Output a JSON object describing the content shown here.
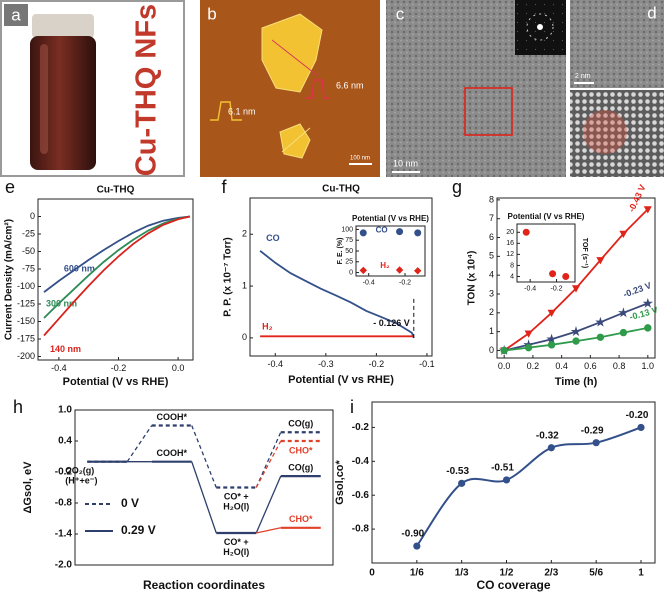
{
  "figure": {
    "a": {
      "panel": "a",
      "caption": "Cu-THQ NFs"
    },
    "b": {
      "panel": "b",
      "annotations": [
        "6.6 nm",
        "6.1 nm"
      ],
      "scale_bar": "100 nm"
    },
    "c": {
      "panel": "c",
      "scale_bar": "10 nm"
    },
    "d": {
      "panel": "d",
      "scale_bar": "2 nm"
    }
  },
  "chart_data": [
    {
      "panel": "e",
      "type": "line",
      "title": "Cu-THQ",
      "xlabel": "Potential (V vs RHE)",
      "ylabel": "Current Density (mA/cm²)",
      "x": [
        -0.45,
        -0.4,
        -0.35,
        -0.3,
        -0.25,
        -0.2,
        -0.15,
        -0.1,
        -0.05,
        0,
        0.04
      ],
      "xlim": [
        -0.47,
        0.05
      ],
      "xticks": [
        -0.4,
        -0.2,
        {
          "value": 0,
          "label": "0.0"
        }
      ],
      "ylim": [
        -205,
        25
      ],
      "yticks": [
        0,
        -25,
        -50,
        -75,
        -100,
        -125,
        -150,
        -175,
        -200
      ],
      "series": [
        {
          "name": "600 nm",
          "color": "#33508a",
          "values": [
            -108,
            -92,
            -77,
            -62,
            -48,
            -35,
            -23,
            -13,
            -6,
            -2,
            0
          ]
        },
        {
          "name": "300 nm",
          "color": "#2e8b57",
          "values": [
            -145,
            -124,
            -104,
            -84,
            -65,
            -48,
            -33,
            -20,
            -10,
            -3,
            0
          ]
        },
        {
          "name": "140 nm",
          "color": "#d9221c",
          "values": [
            -170,
            -146,
            -122,
            -99,
            -77,
            -57,
            -39,
            -24,
            -12,
            -4,
            0
          ]
        }
      ]
    },
    {
      "panel": "f",
      "type": "line",
      "title": "Cu-THQ",
      "xlabel": "Potential (V vs RHE)",
      "ylabel": "P. P. (x 10⁻⁷ Torr)",
      "x": [
        -0.43,
        -0.4,
        -0.37,
        -0.34,
        -0.31,
        -0.28,
        -0.25,
        -0.22,
        -0.19,
        -0.16,
        -0.13,
        -0.126
      ],
      "xlim": [
        -0.45,
        -0.09
      ],
      "xticks": [
        -0.4,
        -0.3,
        -0.2,
        -0.1
      ],
      "ylim": [
        -0.35,
        2.7
      ],
      "yticks": [
        0,
        1,
        2
      ],
      "series": [
        {
          "name": "CO",
          "color": "#33508a",
          "values": [
            1.68,
            1.45,
            1.25,
            1.1,
            0.95,
            0.82,
            0.68,
            0.52,
            0.4,
            0.28,
            0.1,
            0
          ]
        },
        {
          "name": "H₂",
          "color": "#e0241b",
          "values": [
            0.03,
            0.03,
            0.03,
            0.03,
            0.03,
            0.03,
            0.03,
            0.03,
            0.03,
            0.03,
            0.03,
            0.03
          ]
        }
      ],
      "annotation": {
        "text": "- 0.126 V",
        "x": -0.126
      },
      "inset": {
        "type": "scatter",
        "title": "Potential (V vs RHE)",
        "ylabel": "F. E. (%)",
        "x": [
          -0.43,
          -0.23,
          -0.13
        ],
        "xlim": [
          -0.47,
          -0.09
        ],
        "xticks": [
          -0.4,
          -0.2
        ],
        "ylim": [
          -8,
          108
        ],
        "yticks": [
          0,
          25,
          50,
          75,
          100
        ],
        "series": [
          {
            "name": "CO",
            "color": "#33508a",
            "marker": "circle",
            "values": [
              92,
              95,
              92
            ]
          },
          {
            "name": "H₂",
            "color": "#e0241b",
            "marker": "diamond",
            "values": [
              5,
              6,
              4
            ]
          }
        ]
      }
    },
    {
      "panel": "g",
      "type": "line",
      "xlabel": "Time (h)",
      "ylabel": "TON (x 10⁴)",
      "x": [
        0,
        0.17,
        0.33,
        0.5,
        0.67,
        0.83,
        1.0
      ],
      "xlim": [
        -0.05,
        1.05
      ],
      "xticks": [
        {
          "value": 0,
          "label": "0.0"
        },
        0.2,
        0.4,
        0.6,
        0.8,
        {
          "value": 1,
          "label": "1.0"
        }
      ],
      "ylim": [
        -0.4,
        8.1
      ],
      "yticks": [
        0,
        1,
        2,
        3,
        4,
        5,
        6,
        7,
        8
      ],
      "series": [
        {
          "name": "-0.43 V",
          "color": "#e0241b",
          "marker": "triangle-down",
          "values": [
            0,
            0.9,
            2.0,
            3.3,
            4.8,
            6.2,
            7.5
          ]
        },
        {
          "name": "-0.23 V",
          "color": "#3b4a7a",
          "marker": "star",
          "values": [
            0,
            0.3,
            0.6,
            1.0,
            1.5,
            2.0,
            2.5
          ]
        },
        {
          "name": "-0.13 V",
          "color": "#2e9a4a",
          "marker": "circle",
          "values": [
            0,
            0.15,
            0.3,
            0.5,
            0.7,
            0.95,
            1.2
          ]
        }
      ],
      "inset": {
        "type": "scatter",
        "title": "Potential (V vs RHE)",
        "ylabel": "TOF (s⁻¹)",
        "x": [
          -0.43,
          -0.23,
          -0.13
        ],
        "xlim": [
          -0.5,
          -0.06
        ],
        "xticks": [
          -0.4,
          -0.2
        ],
        "ylim": [
          2,
          23
        ],
        "yticks": [
          4,
          8,
          12,
          16,
          20
        ],
        "series": [
          {
            "color": "#e0241b",
            "marker": "circle",
            "values": [
              20,
              5,
              4
            ]
          }
        ]
      }
    },
    {
      "panel": "h",
      "type": "energy-diagram",
      "ylabel": "ΔGsol, eV",
      "xlabel": "Reaction coordinates",
      "ylim": [
        -2.0,
        1.0
      ],
      "yticks": [
        {
          "value": 1,
          "label": "1.0"
        },
        0.4,
        -0.2,
        -0.8,
        -1.4,
        {
          "value": -2,
          "label": "-2.0"
        }
      ],
      "series": [
        {
          "name": "0 V",
          "color": "#2e3f6e",
          "dashed": true,
          "values": [
            0,
            0.7,
            -0.5,
            0.57
          ],
          "labels": [
            "CO₂(g)\n(H⁺+e⁻)",
            "COOH*",
            "CO* +\nH₂O(l)",
            "CO(g)"
          ]
        },
        {
          "name": "0.29 V",
          "color": "#2e3f6e",
          "dashed": false,
          "values": [
            0,
            0,
            -1.38,
            -0.28
          ],
          "labels": [
            null,
            "COOH*",
            "CO* +\nH₂O(l)",
            "CO(g)"
          ]
        },
        {
          "color": "#e0412a",
          "dashed": true,
          "values": [
            null,
            null,
            null,
            0.4
          ],
          "labels": [
            null,
            null,
            null,
            "CHO*"
          ]
        },
        {
          "color": "#e0412a",
          "dashed": false,
          "values": [
            null,
            null,
            null,
            -1.28
          ],
          "labels": [
            null,
            null,
            null,
            "CHO*"
          ]
        }
      ]
    },
    {
      "panel": "i",
      "type": "line",
      "ylabel": "Gsol,co*",
      "xlabel": "CO coverage",
      "categories": [
        "0",
        "1/6",
        "1/3",
        "1/2",
        "2/3",
        "5/6",
        "1"
      ],
      "values": [
        null,
        -0.9,
        -0.53,
        -0.51,
        -0.32,
        -0.29,
        -0.2
      ],
      "value_labels": [
        null,
        "-0.90",
        "-0.53",
        "-0.51",
        "-0.32",
        "-0.29",
        "-0.20"
      ],
      "color": "#33508a",
      "ylim": [
        -1.0,
        -0.05
      ],
      "yticks": [
        -0.2,
        -0.4,
        -0.6,
        -0.8
      ]
    }
  ]
}
